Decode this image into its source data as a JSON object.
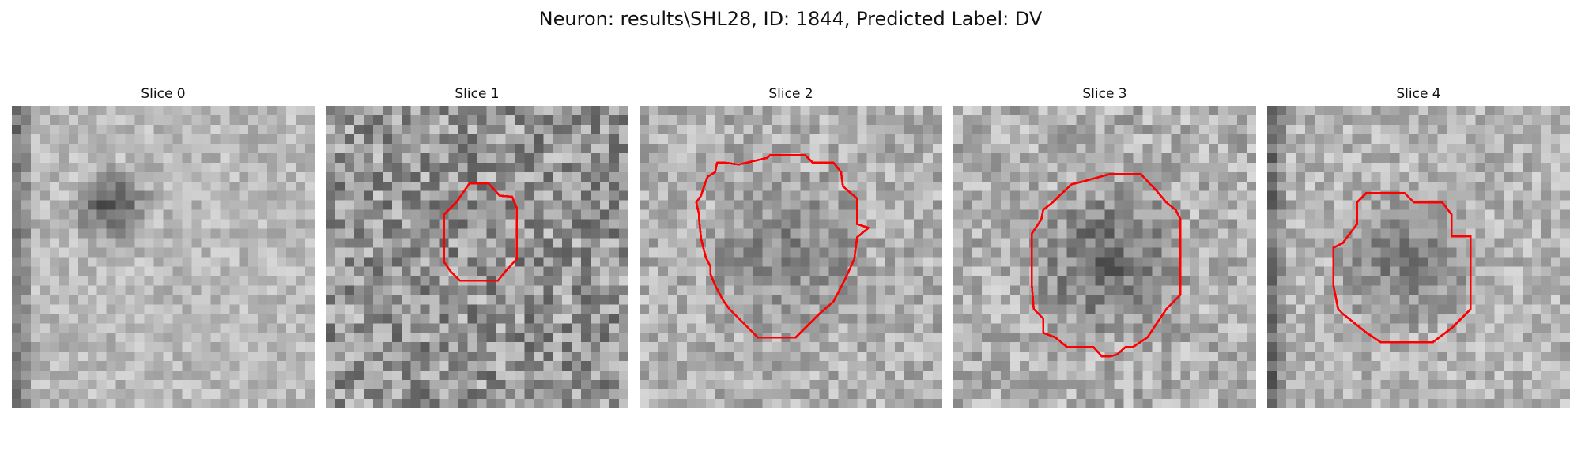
{
  "figure": {
    "title": "Neuron: results\\SHL28, ID: 1844, Predicted Label: DV",
    "contour_color": "#ff0000"
  },
  "slices": [
    {
      "title": "Slice 0",
      "has_contour": false,
      "dark_blob": true
    },
    {
      "title": "Slice 1",
      "has_contour": true
    },
    {
      "title": "Slice 2",
      "has_contour": true
    },
    {
      "title": "Slice 3",
      "has_contour": true
    },
    {
      "title": "Slice 4",
      "has_contour": true
    }
  ]
}
